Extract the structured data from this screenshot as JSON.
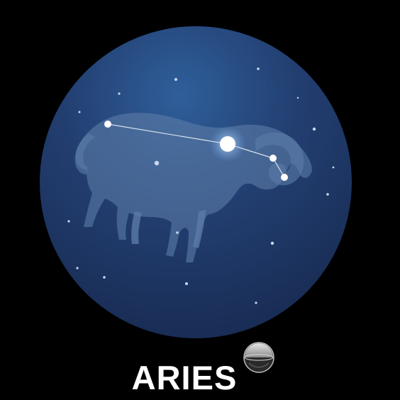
{
  "sign": {
    "name": "ARIES"
  },
  "icons": {
    "constellation": "aries-constellation-icon",
    "ram": "ram-silhouette-icon",
    "badge": "sphere-badge-icon"
  },
  "colors": {
    "background": "#000000",
    "disc_center": "#2f5f9a",
    "disc_edge": "#182a4f",
    "ram_silhouette": "#5b7aa6",
    "star": "#ffffff",
    "title": "#ffffff"
  }
}
